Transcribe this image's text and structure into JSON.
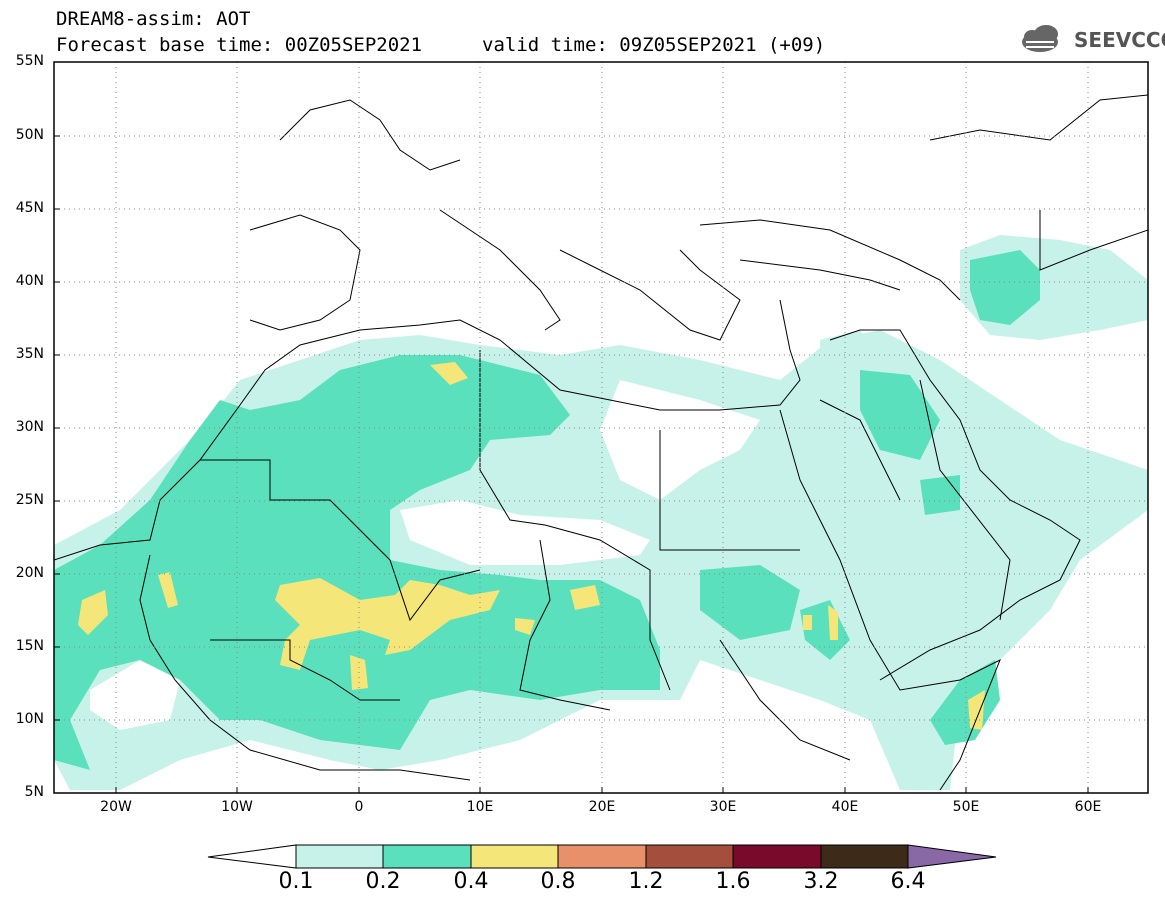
{
  "header": {
    "title": "DREAM8-assim: AOT",
    "base_time_line": "Forecast base time: 00Z05SEP2021",
    "valid_time_line": "valid time: 09Z05SEP2021 (+09)",
    "logo_text": "SEEVCCC",
    "logo_icon": "cloud-logo-icon"
  },
  "map": {
    "lat_range": [
      5,
      55
    ],
    "lon_range": [
      -25,
      65
    ],
    "lat_labels": [
      "55N",
      "50N",
      "45N",
      "40N",
      "35N",
      "30N",
      "25N",
      "20N",
      "15N",
      "10N",
      "5N"
    ],
    "lon_labels": [
      "20W",
      "10W",
      "0",
      "10E",
      "20E",
      "30E",
      "40E",
      "50E",
      "60E"
    ],
    "grid": "dotted"
  },
  "colorbar": {
    "labels": [
      "0.1",
      "0.2",
      "0.4",
      "0.8",
      "1.2",
      "1.6",
      "3.2",
      "6.4"
    ],
    "colors": [
      "#ffffff",
      "#c7f2ea",
      "#5ae0bc",
      "#f5e67a",
      "#e8906a",
      "#a44f3e",
      "#7a0a2c",
      "#3d2a18",
      "#8a67a5"
    ]
  }
}
